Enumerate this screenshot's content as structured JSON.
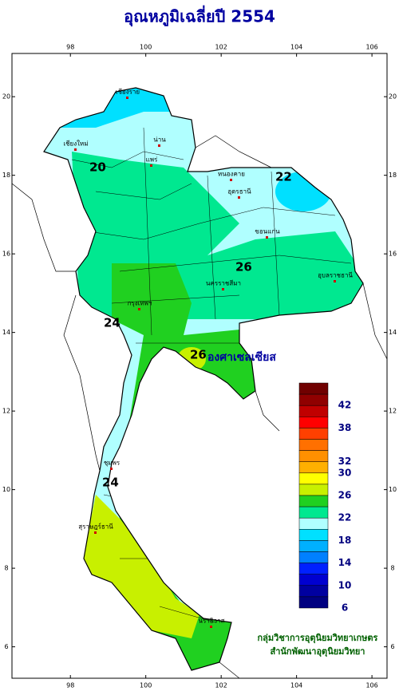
{
  "map": {
    "title": "อุณหภูมิเฉลี่ยปี 2554",
    "xlim": [
      96.45,
      106.4
    ],
    "ylim": [
      5.2,
      21.1
    ],
    "xticks": [
      98,
      100,
      102,
      104,
      106
    ],
    "yticks": [
      6,
      8,
      10,
      12,
      14,
      16,
      18,
      20
    ],
    "legend": {
      "title": "องศาเซลเซียส",
      "levels": [
        46,
        44,
        42,
        40,
        38,
        36,
        34,
        32,
        30,
        28,
        26,
        24,
        22,
        20,
        18,
        16,
        14,
        12,
        10,
        8,
        6
      ],
      "colors": [
        "#700000",
        "#900000",
        "#c00000",
        "#ff0000",
        "#ff4000",
        "#ff7000",
        "#ff9000",
        "#ffb000",
        "#ffff00",
        "#c8f000",
        "#20d020",
        "#00e890",
        "#b0ffff",
        "#00e0ff",
        "#00b0ff",
        "#0080ff",
        "#0020ff",
        "#0000d0",
        "#0000a0",
        "#000080"
      ],
      "labels": [
        42,
        38,
        32,
        30,
        26,
        22,
        18,
        14,
        10,
        6
      ]
    },
    "contour_labels": [
      "20",
      "22",
      "24",
      "26",
      "26",
      "24"
    ],
    "places": [
      "เชียงราย",
      "เชียงใหม่",
      "น่าน",
      "แพร่",
      "หนองคาย",
      "อุดรธานี",
      "ขอนแก่น",
      "นครราชสีมา",
      "อุบลราชธานี",
      "กรุงเทพฯ",
      "ชุมพร",
      "สุราษฎร์ธานี",
      "นราธิวาส"
    ],
    "credits": [
      "กลุ่มวิชาการอุตุนิยมวิทยาเกษตร",
      "สำนักพัฒนาอุตุนิยมวิทยา"
    ]
  }
}
